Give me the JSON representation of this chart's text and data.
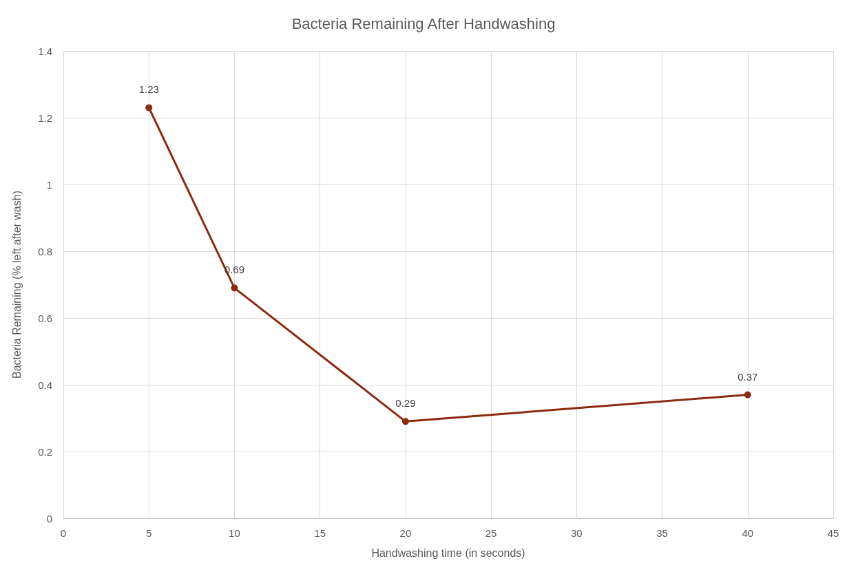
{
  "chart_data": {
    "type": "line",
    "title": "Bacteria Remaining After Handwashing",
    "xlabel": "Handwashing time (in seconds)",
    "ylabel": "Bacteria Remaining (% left after wash)",
    "x": [
      5,
      10,
      20,
      40
    ],
    "series": [
      {
        "color": "#8b2a0e",
        "values": [
          1.23,
          0.69,
          0.29,
          0.37
        ]
      }
    ],
    "xlim": [
      0,
      45
    ],
    "xticks": [
      0,
      5,
      10,
      15,
      20,
      25,
      30,
      35,
      40,
      45
    ],
    "ylim": [
      0,
      1.4
    ],
    "yticks": [
      0,
      0.2,
      0.4,
      0.6,
      0.8,
      1,
      1.2,
      1.4
    ],
    "grid": true,
    "marker": "circle",
    "line_style": "solid",
    "data_labels": true
  }
}
